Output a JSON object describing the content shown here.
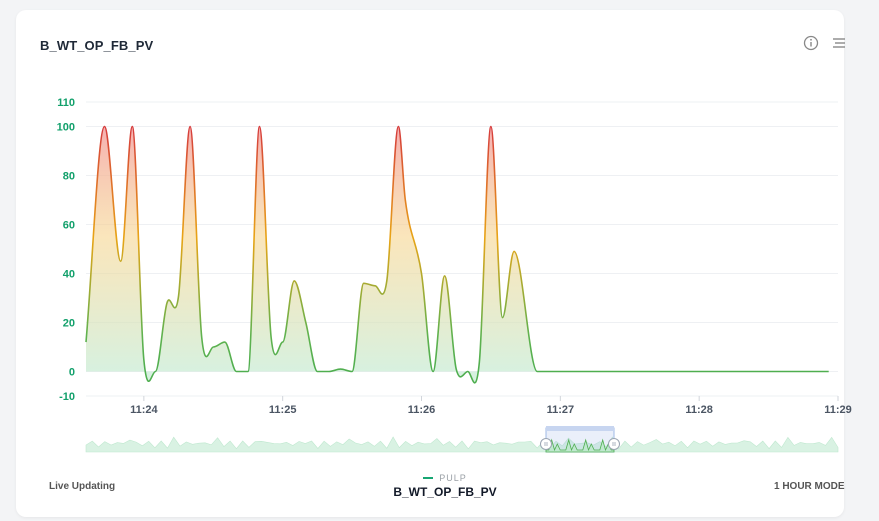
{
  "header": {
    "title": "B_WT_OP_FB_PV"
  },
  "icons": {
    "info": "info-circle-icon",
    "menu": "menu-lines-icon"
  },
  "footer": {
    "live_label": "Live Updating",
    "mode_label": "1 HOUR MODE",
    "legend_group": "PULP",
    "legend_series": "B_WT_OP_FB_PV"
  },
  "colors": {
    "high": "#d63c3c",
    "mid": "#e8a416",
    "low": "#4fae4f",
    "tick_label": "#12a06b",
    "legend_swatch": "#17a673",
    "navigator_window": "#9fb8e6"
  },
  "chart_data": {
    "type": "area",
    "title": "",
    "xlabel": "",
    "ylabel": "",
    "ylim": [
      -10,
      110
    ],
    "yticks": [
      -10,
      0,
      20,
      40,
      60,
      80,
      100,
      110
    ],
    "xlim": [
      "11:23:35",
      "11:29:00"
    ],
    "xticks": [
      "11:24",
      "11:25",
      "11:26",
      "11:27",
      "11:28",
      "11:29"
    ],
    "grid": true,
    "legend": "bottom-center",
    "series": [
      {
        "name": "B_WT_OP_FB_PV",
        "x": [
          "11:23:35",
          "11:23:43",
          "11:23:50",
          "11:23:55",
          "11:24:00",
          "11:24:05",
          "11:24:10",
          "11:24:15",
          "11:24:20",
          "11:24:25",
          "11:24:30",
          "11:24:35",
          "11:24:40",
          "11:24:45",
          "11:24:50",
          "11:24:55",
          "11:25:00",
          "11:25:05",
          "11:25:10",
          "11:25:15",
          "11:25:20",
          "11:25:25",
          "11:25:30",
          "11:25:35",
          "11:25:40",
          "11:25:45",
          "11:25:50",
          "11:25:53",
          "11:26:00",
          "11:26:05",
          "11:26:10",
          "11:26:15",
          "11:26:20",
          "11:26:25",
          "11:26:30",
          "11:26:35",
          "11:26:40",
          "11:26:50",
          "11:27:00",
          "11:27:05",
          "11:27:10",
          "11:27:15",
          "11:27:20",
          "11:27:25",
          "11:27:30",
          "11:27:35",
          "11:27:40",
          "11:27:45",
          "11:27:50",
          "11:27:55",
          "11:28:00",
          "11:28:05",
          "11:28:10",
          "11:28:15",
          "11:28:20",
          "11:28:25",
          "11:28:30",
          "11:28:35",
          "11:28:40",
          "11:28:45",
          "11:28:50",
          "11:28:56"
        ],
        "values": [
          12,
          100,
          45,
          100,
          5,
          0,
          28,
          31,
          100,
          14,
          10,
          12,
          0,
          0,
          100,
          14,
          12,
          37,
          20,
          0,
          0,
          1,
          0,
          36,
          35,
          37,
          100,
          70,
          40,
          0,
          39,
          1,
          0,
          4,
          100,
          22,
          49,
          0,
          0,
          0,
          0,
          0,
          0,
          0,
          0,
          0,
          0,
          0,
          0,
          0,
          0,
          0,
          0,
          0,
          0,
          0,
          0,
          0,
          0,
          0,
          0,
          0
        ]
      }
    ]
  }
}
